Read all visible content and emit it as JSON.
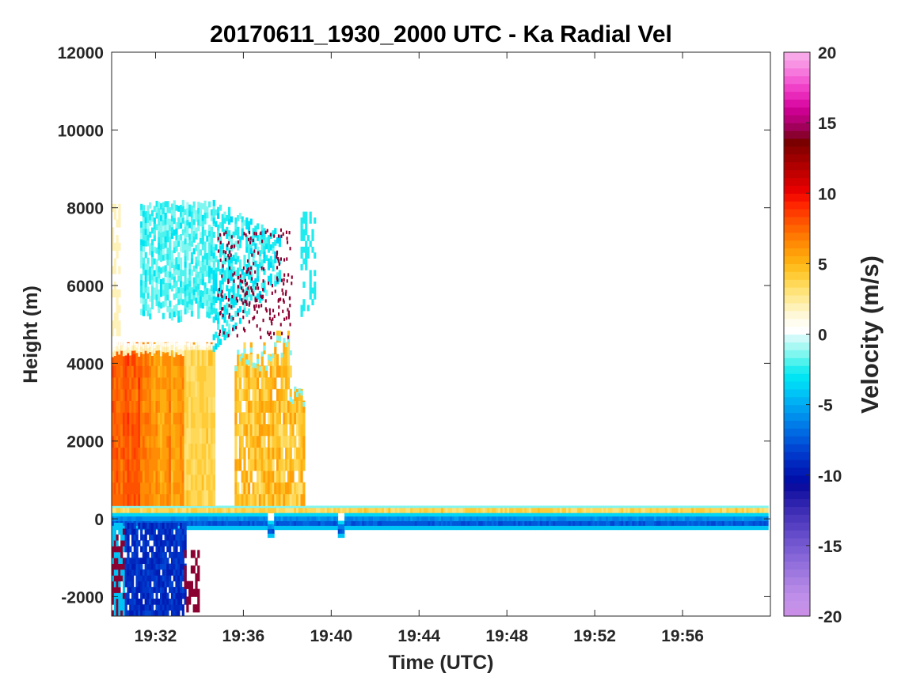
{
  "chart_data": {
    "type": "heatmap",
    "title": "20170611_1930_2000 UTC - Ka Radial Vel",
    "xlabel": "Time (UTC)",
    "ylabel": "Height (m)",
    "xlim": [
      "19:30",
      "20:00"
    ],
    "ylim": [
      -2500,
      12000
    ],
    "x_ticks": [
      "19:32",
      "19:36",
      "19:40",
      "19:44",
      "19:48",
      "19:52",
      "19:56"
    ],
    "y_ticks": [
      -2000,
      0,
      2000,
      4000,
      6000,
      8000,
      10000,
      12000
    ],
    "grid": false,
    "colorbar": {
      "label": "Velocity (m/s)",
      "range": [
        -20,
        20
      ],
      "ticks": [
        -20,
        -15,
        -10,
        -5,
        0,
        5,
        10,
        15,
        20
      ],
      "colors": [
        "#c98fe6",
        "#c491e8",
        "#be8ee8",
        "#b588e6",
        "#aa80e3",
        "#9f78df",
        "#9470dc",
        "#8867d8",
        "#7c5ed4",
        "#7055cf",
        "#634bc9",
        "#5741c2",
        "#4a37bc",
        "#3c2db4",
        "#2d22ad",
        "#1d18a6",
        "#0d0ea0",
        "#0010a8",
        "#001cb4",
        "#0028bf",
        "#0036c9",
        "#0046d2",
        "#0058db",
        "#006ae2",
        "#007ce8",
        "#008eec",
        "#00a0f0",
        "#00b2f3",
        "#00c4f5",
        "#00d6f6",
        "#00e4f4",
        "#20ecf0",
        "#50f2ee",
        "#80f6f0",
        "#a8f8f4",
        "#d0fafa",
        "#ffffff",
        "#fffdf0",
        "#fff8d8",
        "#fff2b8",
        "#ffea98",
        "#ffe278",
        "#ffd858",
        "#ffcc38",
        "#ffbe20",
        "#ffae10",
        "#ff9e08",
        "#ff8c04",
        "#ff7a02",
        "#ff6600",
        "#ff5200",
        "#ff3c00",
        "#ff2600",
        "#f61000",
        "#e60000",
        "#d40000",
        "#c20000",
        "#b00000",
        "#9e0000",
        "#8c0000",
        "#7a0000",
        "#8a0030",
        "#a0005a",
        "#b80078",
        "#cc0090",
        "#dc10a6",
        "#e828b8",
        "#f040c8",
        "#f45cd4",
        "#f678dc",
        "#f892e2",
        "#f8a8e8"
      ]
    },
    "description_regions": [
      {
        "x": [
          "19:30",
          "19:34.6"
        ],
        "y": [
          150,
          4450
        ],
        "velocity": 6
      },
      {
        "x": [
          "19:31.4",
          "19:34.6"
        ],
        "y": [
          5000,
          8050
        ],
        "velocity": -2
      },
      {
        "x": [
          "19:30",
          "19:33.2"
        ],
        "y": [
          -2500,
          -100
        ],
        "velocity": -8
      },
      {
        "x": [
          "19:30",
          "19:59.8"
        ],
        "y": [
          -300,
          300
        ],
        "velocity": -6
      }
    ]
  }
}
